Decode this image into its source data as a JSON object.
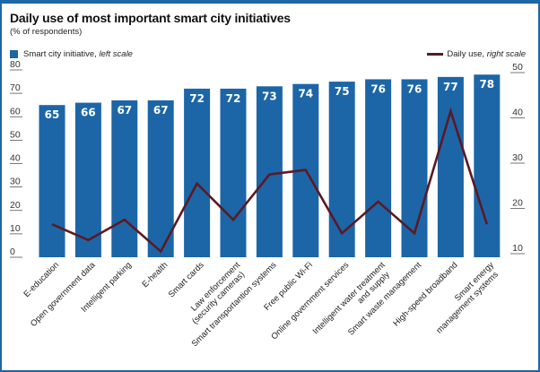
{
  "chart_data": {
    "type": "bar+line",
    "title": "Daily use of most important smart city initiatives",
    "subtitle": "(% of respondents)",
    "legend": {
      "bar_label": "Smart city initiative,",
      "bar_label_italic": "left scale",
      "line_label": "Daily use,",
      "line_label_italic": "right scale",
      "placement": "top"
    },
    "categories": [
      "E-education",
      "Open government data",
      "Intelligent parking",
      "E-health",
      "Smart cards",
      "Law enforcement|(security cameras)",
      "Smart transportantion systems",
      "Free public Wi-Fi",
      "Online government services",
      "Intelligent water treatment|and supply",
      "Smart waste management",
      "High-speed broadband",
      "Smart energy|management systems"
    ],
    "series": [
      {
        "name": "Smart city initiative",
        "axis": "left",
        "type": "bar",
        "color": "#1c66a7",
        "values": [
          65,
          66,
          67,
          67,
          72,
          72,
          73,
          74,
          75,
          76,
          76,
          77,
          78
        ]
      },
      {
        "name": "Daily use",
        "axis": "right",
        "type": "line",
        "color": "#5a1a24",
        "values": [
          16.5,
          13,
          17.5,
          10.5,
          25.5,
          17.5,
          27.5,
          28.5,
          14.5,
          21.5,
          14.5,
          41.5,
          16.5
        ]
      }
    ],
    "left_axis": {
      "ylim": [
        0,
        80
      ],
      "ticks": [
        "0",
        "10",
        "20",
        "30",
        "40",
        "50",
        "60",
        "70",
        "80"
      ]
    },
    "right_axis": {
      "ylim": [
        10,
        50
      ],
      "ticks": [
        "10",
        "20",
        "30",
        "40",
        "50"
      ]
    },
    "grid": false
  }
}
